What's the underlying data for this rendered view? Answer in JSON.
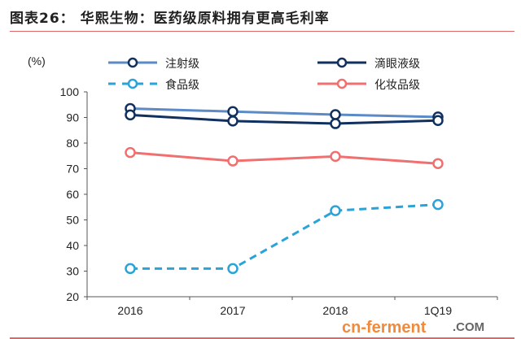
{
  "chart_data": {
    "type": "line",
    "title": "图表26：  华熙生物：医药级原料拥有更高毛利率",
    "ylabel": "(%)",
    "xlabel": "",
    "categories": [
      "2016",
      "2017",
      "2018",
      "1Q19"
    ],
    "ylim": [
      20,
      100
    ],
    "yticks": [
      "20",
      "30",
      "40",
      "50",
      "60",
      "70",
      "80",
      "90",
      "100"
    ],
    "series": [
      {
        "name": "注射级",
        "values": [
          93.5,
          92.3,
          91.1,
          90.2
        ],
        "color": "#5b8ac6",
        "dashed": false
      },
      {
        "name": "滴眼液级",
        "values": [
          91,
          88.6,
          87.6,
          88.8
        ],
        "color": "#10305f",
        "dashed": false
      },
      {
        "name": "食品级",
        "values": [
          31,
          31,
          53.6,
          56
        ],
        "color": "#2aa3d8",
        "dashed": true
      },
      {
        "name": "化妆品级",
        "values": [
          76.3,
          73,
          74.8,
          72
        ],
        "color": "#f07070",
        "dashed": false
      }
    ]
  },
  "watermark": "cn-ferment",
  "watermark2": ".COM"
}
